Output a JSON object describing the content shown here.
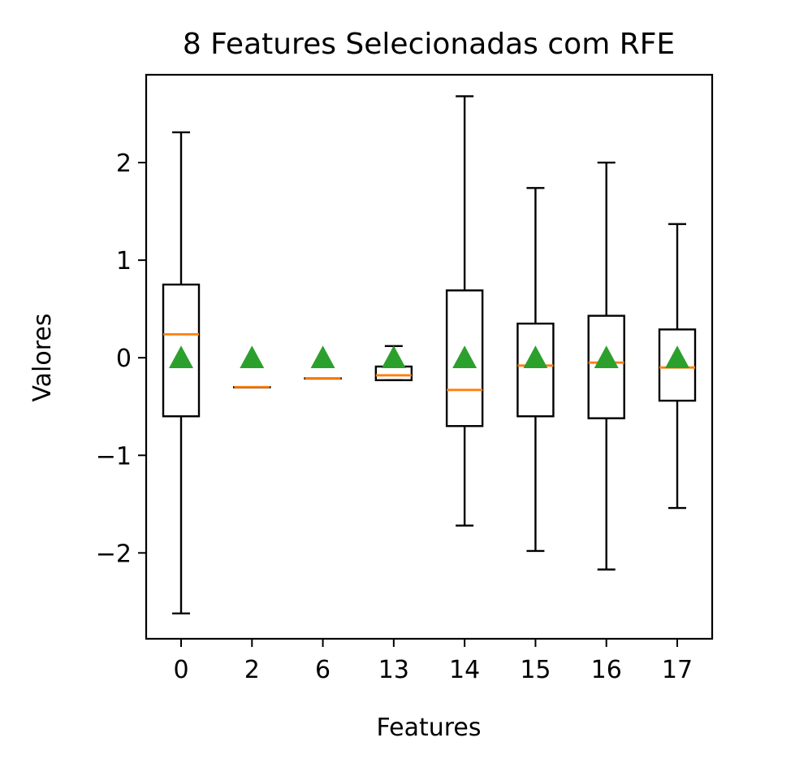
{
  "chart_data": {
    "type": "boxplot",
    "title": "8 Features Selecionadas com RFE",
    "xlabel": "Features",
    "ylabel": "Valores",
    "ylim": [
      -2.88,
      2.9
    ],
    "yticks": [
      {
        "value": 2,
        "label": "2"
      },
      {
        "value": 1,
        "label": "1"
      },
      {
        "value": 0,
        "label": "0"
      },
      {
        "value": -1,
        "label": "−1"
      },
      {
        "value": -2,
        "label": "−2"
      }
    ],
    "grid": false,
    "legend": "none",
    "colors": {
      "box": "#000000",
      "median": "#ff7f0e",
      "mean": "#2ca02c"
    },
    "categories": [
      "0",
      "2",
      "6",
      "13",
      "14",
      "15",
      "16",
      "17"
    ],
    "boxes": [
      {
        "category": "0",
        "whisker_low": -2.62,
        "q1": -0.6,
        "median": 0.24,
        "q3": 0.75,
        "whisker_high": 2.31,
        "mean": 0
      },
      {
        "category": "2",
        "whisker_low": -0.3,
        "q1": -0.3,
        "median": -0.3,
        "q3": -0.3,
        "whisker_high": -0.3,
        "mean": 0
      },
      {
        "category": "6",
        "whisker_low": -0.21,
        "q1": -0.21,
        "median": -0.21,
        "q3": -0.21,
        "whisker_high": -0.21,
        "mean": 0
      },
      {
        "category": "13",
        "whisker_low": -0.23,
        "q1": -0.23,
        "median": -0.18,
        "q3": -0.09,
        "whisker_high": 0.12,
        "mean": 0
      },
      {
        "category": "14",
        "whisker_low": -1.72,
        "q1": -0.7,
        "median": -0.33,
        "q3": 0.69,
        "whisker_high": 2.68,
        "mean": 0
      },
      {
        "category": "15",
        "whisker_low": -1.98,
        "q1": -0.6,
        "median": -0.08,
        "q3": 0.35,
        "whisker_high": 1.74,
        "mean": 0
      },
      {
        "category": "16",
        "whisker_low": -2.17,
        "q1": -0.62,
        "median": -0.05,
        "q3": 0.43,
        "whisker_high": 2.0,
        "mean": 0
      },
      {
        "category": "17",
        "whisker_low": -1.54,
        "q1": -0.44,
        "median": -0.1,
        "q3": 0.29,
        "whisker_high": 1.37,
        "mean": 0
      }
    ]
  }
}
